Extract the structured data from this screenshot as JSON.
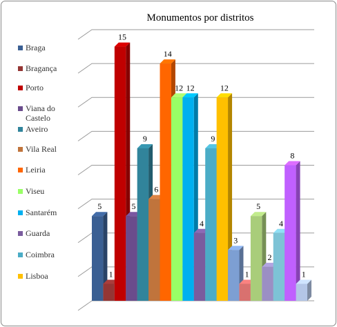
{
  "chart_data": {
    "type": "bar3d",
    "title": "Monumentos por distritos",
    "categories": [
      "Braga",
      "Bragança",
      "Porto",
      "Viana do Castelo",
      "Aveiro",
      "Vila Real",
      "Leiria",
      "Viseu",
      "Santarém",
      "Guarda",
      "Coimbra",
      "Lisboa",
      null,
      null,
      null,
      null,
      null,
      null,
      null
    ],
    "values": [
      5,
      1,
      15,
      5,
      9,
      6,
      14,
      12,
      12,
      4,
      9,
      12,
      3,
      1,
      5,
      2,
      4,
      8,
      1
    ],
    "colors": [
      "#3a5f93",
      "#943634",
      "#c00000",
      "#6a4c8c",
      "#31849b",
      "#c0743c",
      "#ff6600",
      "#99ff66",
      "#00b0f0",
      "#7a5c9e",
      "#4bacc6",
      "#ffc000",
      "#7d9fd3",
      "#d9716f",
      "#a9cd7a",
      "#9b8fc4",
      "#7dc3d6",
      "#c060ff",
      "#b4c6e7"
    ],
    "ylim": [
      0,
      16
    ],
    "yticks": [
      0,
      2,
      4,
      6,
      8,
      10,
      12,
      14,
      16
    ],
    "grid": true
  }
}
